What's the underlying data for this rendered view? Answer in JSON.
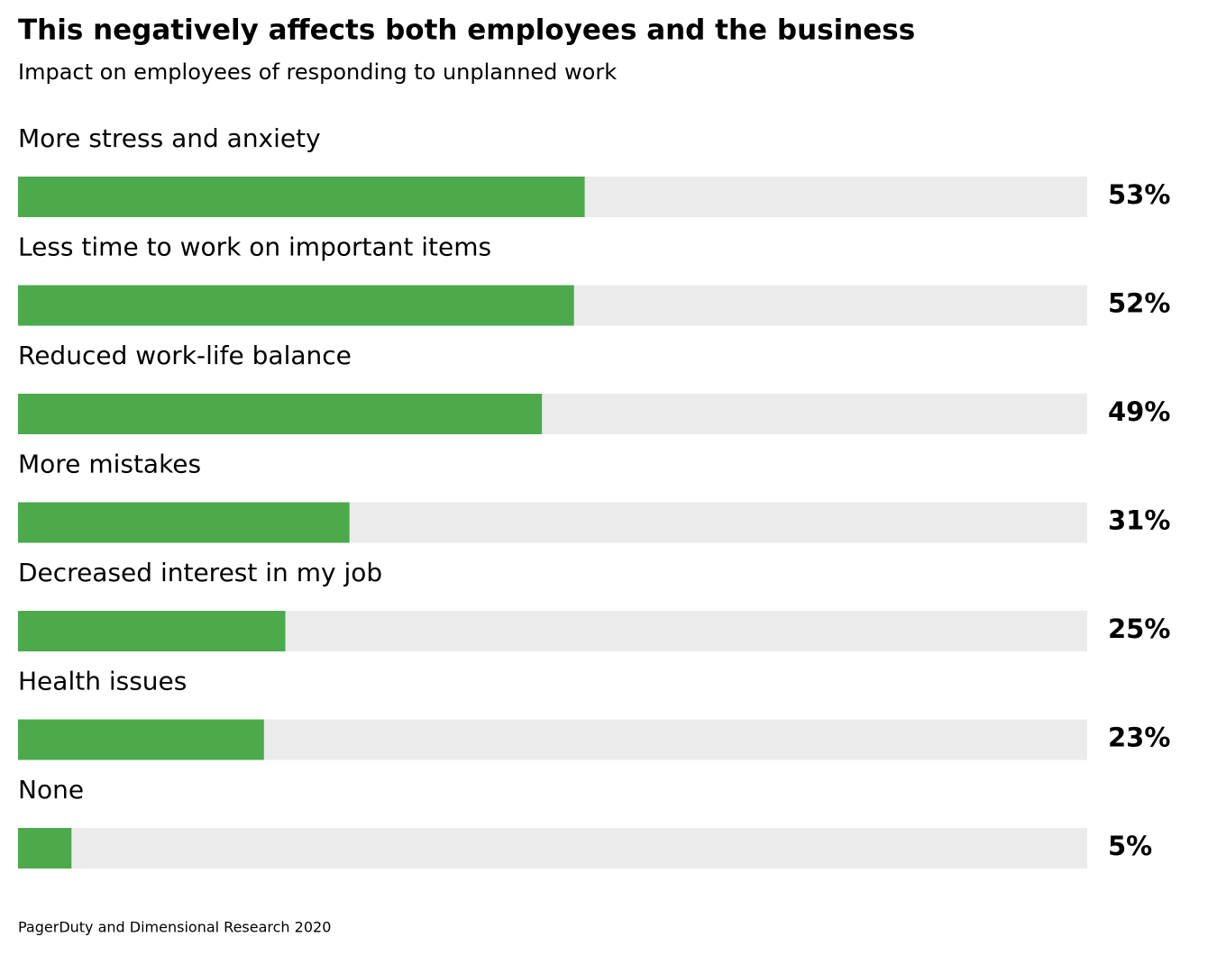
{
  "chart_data": {
    "type": "bar",
    "orientation": "horizontal",
    "title": "This negatively affects both employees and the business",
    "subtitle": "Impact on employees of responding to unplanned work",
    "categories": [
      "More stress and anxiety",
      "Less time to work on important items",
      "Reduced work-life balance",
      "More mistakes",
      "Decreased interest in my job",
      "Health issues",
      "None"
    ],
    "values": [
      53,
      52,
      49,
      31,
      25,
      23,
      5
    ],
    "value_labels": [
      "53%",
      "52%",
      "49%",
      "31%",
      "25%",
      "23%",
      "5%"
    ],
    "color": "#4caa4c",
    "track_color": "#ebebeb",
    "xlim": [
      0,
      100
    ],
    "source": "PagerDuty and Dimensional Research 2020"
  }
}
